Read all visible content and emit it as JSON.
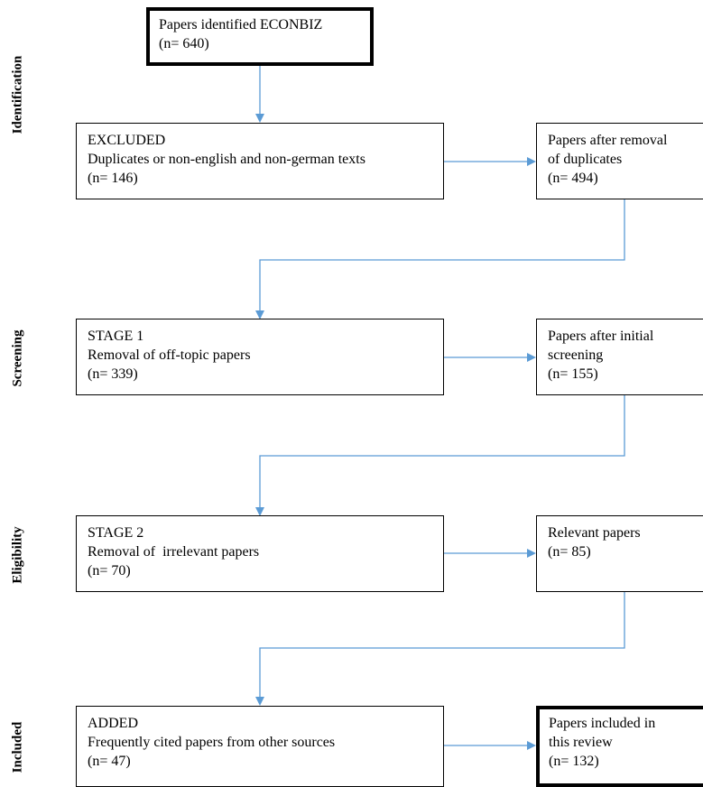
{
  "phases": {
    "identification": "Identification",
    "screening": "Screening",
    "eligibility": "Eligibility",
    "included": "Included"
  },
  "boxes": {
    "identified": {
      "line1": "Papers identified ECONBIZ",
      "line2": "(n= 640)"
    },
    "excluded": {
      "line1": "EXCLUDED",
      "line2": "Duplicates or non-english and non-german texts",
      "line3": "(n= 146)"
    },
    "after_duplicates": {
      "line1": "Papers after removal",
      "line2": "of duplicates",
      "line3": "(n= 494)"
    },
    "stage1": {
      "line1": "STAGE 1",
      "line2": "Removal of off-topic papers",
      "line3": "(n= 339)"
    },
    "after_screening": {
      "line1": "Papers after initial",
      "line2": "screening",
      "line3": "(n= 155)"
    },
    "stage2": {
      "line1": "STAGE 2",
      "line2": "Removal of  irrelevant papers",
      "line3": "(n= 70)"
    },
    "relevant": {
      "line1": "Relevant papers",
      "line2": "(n= 85)"
    },
    "added": {
      "line1": "ADDED",
      "line2": "Frequently cited papers from other sources",
      "line3": "(n= 47)"
    },
    "included": {
      "line1": "Papers included in",
      "line2": "this review",
      "line3": "(n= 132)"
    }
  },
  "colors": {
    "arrow": "#5b9bd5",
    "border": "#000000"
  }
}
